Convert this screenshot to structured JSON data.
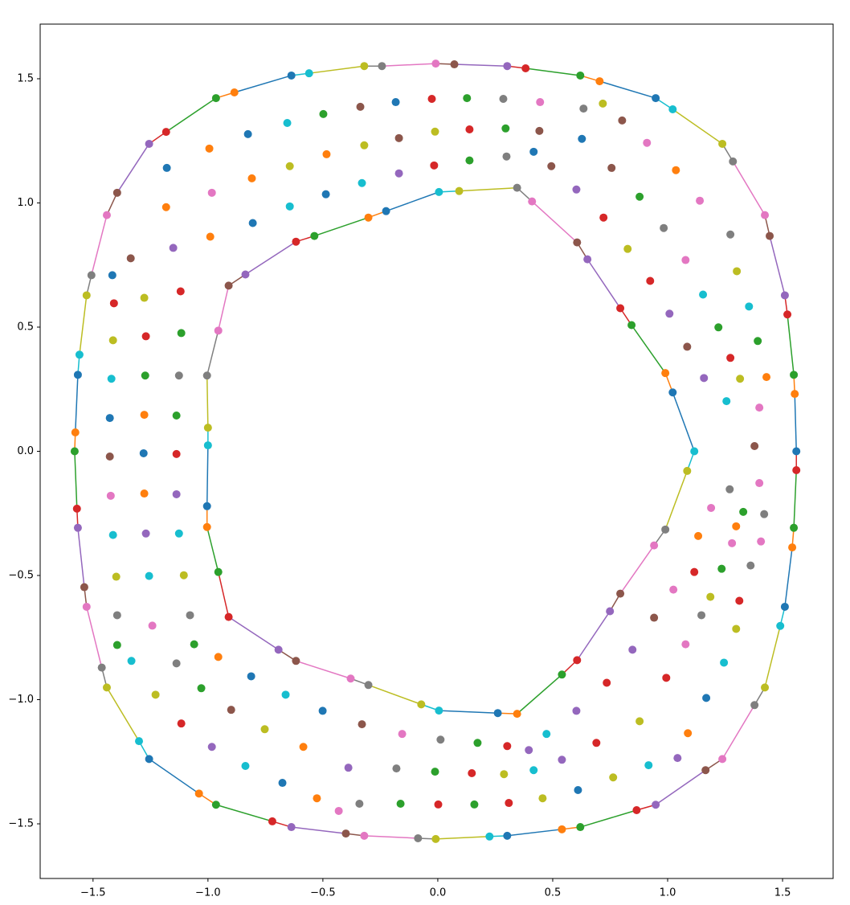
{
  "chart_data": {
    "type": "scatter",
    "xlim": [
      -1.73,
      1.72
    ],
    "ylim": [
      -1.72,
      1.72
    ],
    "xticks": [
      {
        "value": -1.5,
        "label": "−1.5"
      },
      {
        "value": -1,
        "label": "−1.0"
      },
      {
        "value": -0.5,
        "label": "−0.5"
      },
      {
        "value": 0,
        "label": "0.0"
      },
      {
        "value": 0.5,
        "label": "0.5"
      },
      {
        "value": 1,
        "label": "1.0"
      },
      {
        "value": 1.5,
        "label": "1.5"
      }
    ],
    "yticks": [
      {
        "value": -1.5,
        "label": "−1.5"
      },
      {
        "value": -1,
        "label": "−1.0"
      },
      {
        "value": -0.5,
        "label": "−0.5"
      },
      {
        "value": 0,
        "label": "0.0"
      },
      {
        "value": 0.5,
        "label": "0.5"
      },
      {
        "value": 1,
        "label": "1.0"
      },
      {
        "value": 1.5,
        "label": "1.5"
      }
    ],
    "loops": [
      {
        "x": [
          1.56,
          1.553,
          1.549,
          1.521,
          1.51,
          1.444,
          1.423,
          1.284,
          1.238,
          1.022,
          0.948,
          0.704,
          0.62,
          0.382,
          0.302,
          0.072,
          -0.009,
          -0.243,
          -0.32,
          -0.56,
          -0.637,
          -0.885,
          -0.965,
          -1.182,
          -1.256,
          -1.395,
          -1.44,
          -1.507,
          -1.528,
          -1.559,
          -1.566,
          -1.577,
          -1.58,
          -1.57,
          -1.566,
          -1.538,
          -1.528,
          -1.462,
          -1.44,
          -1.3,
          -1.256,
          -1.039,
          -0.965,
          -0.72,
          -0.637,
          -0.4,
          -0.32,
          -0.086,
          -0.009,
          0.225,
          0.302,
          0.54,
          0.62,
          0.865,
          0.948,
          1.165,
          1.238,
          1.378,
          1.423,
          1.49,
          1.51,
          1.542,
          1.549,
          1.56
        ],
        "y": [
          0,
          0.231,
          0.308,
          0.551,
          0.628,
          0.867,
          0.951,
          1.167,
          1.238,
          1.377,
          1.422,
          1.49,
          1.513,
          1.542,
          1.551,
          1.558,
          1.561,
          1.551,
          1.551,
          1.522,
          1.513,
          1.445,
          1.422,
          1.286,
          1.238,
          1.041,
          0.951,
          0.709,
          0.628,
          0.389,
          0.308,
          0.076,
          0,
          -0.231,
          -0.308,
          -0.547,
          -0.626,
          -0.871,
          -0.951,
          -1.167,
          -1.239,
          -1.378,
          -1.423,
          -1.49,
          -1.513,
          -1.539,
          -1.548,
          -1.558,
          -1.561,
          -1.551,
          -1.548,
          -1.522,
          -1.513,
          -1.445,
          -1.423,
          -1.284,
          -1.239,
          -1.022,
          -0.951,
          -0.703,
          -0.626,
          -0.387,
          -0.308,
          -0.076
        ],
        "colors": [
          "#1f77b4",
          "#ff7f0e",
          "#2ca02c",
          "#d62728",
          "#9467bd",
          "#8c564b",
          "#e377c2",
          "#7f7f7f",
          "#bcbd22",
          "#17becf",
          "#1f77b4",
          "#ff7f0e",
          "#2ca02c",
          "#d62728",
          "#9467bd",
          "#8c564b",
          "#e377c2",
          "#7f7f7f",
          "#bcbd22",
          "#17becf",
          "#1f77b4",
          "#ff7f0e",
          "#2ca02c",
          "#d62728",
          "#9467bd",
          "#8c564b",
          "#e377c2",
          "#7f7f7f",
          "#bcbd22",
          "#17becf",
          "#1f77b4",
          "#ff7f0e",
          "#2ca02c",
          "#d62728",
          "#9467bd",
          "#8c564b",
          "#e377c2",
          "#7f7f7f",
          "#bcbd22",
          "#17becf",
          "#1f77b4",
          "#ff7f0e",
          "#2ca02c",
          "#d62728",
          "#9467bd",
          "#8c564b",
          "#e377c2",
          "#7f7f7f",
          "#bcbd22",
          "#17becf",
          "#1f77b4",
          "#ff7f0e",
          "#2ca02c",
          "#d62728",
          "#9467bd",
          "#8c564b",
          "#e377c2",
          "#7f7f7f",
          "#bcbd22",
          "#17becf",
          "#1f77b4",
          "#ff7f0e",
          "#2ca02c",
          "#d62728"
        ]
      },
      {
        "x": [
          1.116,
          1.085,
          0.99,
          0.941,
          0.794,
          0.749,
          0.606,
          0.54,
          0.345,
          0.261,
          0.005,
          -0.072,
          -0.302,
          -0.379,
          -0.617,
          -0.693,
          -0.91,
          -0.955,
          -1.004,
          -1.004,
          -1.0,
          -1.0,
          -1.004,
          -0.955,
          -0.91,
          -0.837,
          -0.617,
          -0.537,
          -0.302,
          -0.225,
          0.005,
          0.093,
          0.345,
          0.41,
          0.606,
          0.651,
          0.794,
          0.843,
          0.99,
          1.022
        ],
        "y": [
          0,
          -0.079,
          -0.315,
          -0.379,
          -0.573,
          -0.644,
          -0.841,
          -0.899,
          -1.057,
          -1.054,
          -1.044,
          -1.019,
          -0.941,
          -0.915,
          -0.844,
          -0.799,
          -0.667,
          -0.486,
          -0.305,
          -0.221,
          0.024,
          0.095,
          0.305,
          0.486,
          0.667,
          0.712,
          0.844,
          0.867,
          0.941,
          0.967,
          1.044,
          1.048,
          1.061,
          1.006,
          0.841,
          0.773,
          0.576,
          0.508,
          0.315,
          0.237
        ],
        "colors": [
          "#17becf",
          "#bcbd22",
          "#7f7f7f",
          "#e377c2",
          "#8c564b",
          "#9467bd",
          "#d62728",
          "#2ca02c",
          "#ff7f0e",
          "#1f77b4",
          "#17becf",
          "#bcbd22",
          "#7f7f7f",
          "#e377c2",
          "#8c564b",
          "#9467bd",
          "#d62728",
          "#2ca02c",
          "#ff7f0e",
          "#1f77b4",
          "#17becf",
          "#bcbd22",
          "#7f7f7f",
          "#e377c2",
          "#8c564b",
          "#9467bd",
          "#d62728",
          "#2ca02c",
          "#ff7f0e",
          "#1f77b4",
          "#17becf",
          "#bcbd22",
          "#7f7f7f",
          "#e377c2",
          "#8c564b",
          "#9467bd",
          "#d62728",
          "#2ca02c",
          "#ff7f0e",
          "#1f77b4"
        ]
      }
    ],
    "points": {
      "x": [
        -0.337,
        -0.183,
        -0.026,
        0.127,
        0.285,
        0.445,
        0.634,
        0.718,
        0.802,
        0.91,
        1.036,
        1.14,
        1.273,
        1.301,
        1.354,
        1.392,
        1.43,
        1.399,
        1.315,
        1.273,
        1.221,
        1.154,
        1.078,
        0.983,
        0.878,
        0.756,
        0.627,
        0.442,
        0.295,
        0.138,
        -0.012,
        -0.169,
        -0.32,
        -0.484,
        -0.644,
        -0.809,
        -0.983,
        -0.99,
        -0.805,
        -0.644,
        -0.487,
        -0.33,
        -0.169,
        -0.016,
        0.138,
        0.299,
        0.417,
        0.494,
        0.603,
        0.721,
        0.826,
        0.924,
        1.008,
        1.085,
        1.158,
        1.256,
        1.378,
        1.27,
        1.399,
        1.42,
        1.329,
        1.189,
        1.298,
        1.28,
        1.406,
        1.361,
        1.235,
        1.133,
        1.116,
        1.186,
        1.312,
        1.298,
        1.147,
        1.025,
        0.941,
        1.078,
        1.245,
        1.168,
        1.088,
        1.043,
        0.917,
        0.994,
        0.847,
        0.878,
        0.735,
        0.69,
        0.763,
        0.61,
        0.456,
        0.309,
        0.159,
        0.002,
        -0.162,
        -0.341,
        -0.431,
        -0.526,
        -0.676,
        -0.837,
        -0.983,
        -1.116,
        -1.228,
        -1.333,
        -1.395,
        -1.395,
        -1.399,
        -1.413,
        -1.423,
        -1.427,
        -1.427,
        -1.42,
        -1.413,
        -1.409,
        -1.416,
        -1.336,
        -1.151,
        -1.182,
        -1.179,
        -0.994,
        -0.826,
        -0.655,
        -0.498,
        -1.277,
        -1.119,
        -1.27,
        -1.116,
        -1.273,
        -1.126,
        -1.277,
        -1.137,
        -1.28,
        -1.137,
        -1.277,
        -1.137,
        -1.27,
        -1.126,
        -1.256,
        -1.105,
        -1.078,
        -1.242,
        -1.06,
        -1.137,
        -0.955,
        -1.029,
        -0.899,
        -0.812,
        -0.662,
        -0.753,
        -0.585,
        -0.501,
        -0.33,
        -0.389,
        -0.18,
        -0.155,
        0.012,
        -0.012,
        0.148,
        0.173,
        0.302,
        0.288,
        0.396,
        0.417,
        0.473,
        0.54,
        0.603
      ],
      "y": [
        1.387,
        1.406,
        1.419,
        1.422,
        1.419,
        1.406,
        1.38,
        1.4,
        1.332,
        1.242,
        1.132,
        1.009,
        0.873,
        0.725,
        0.583,
        0.444,
        0.299,
        0.176,
        0.292,
        0.376,
        0.499,
        0.631,
        0.77,
        0.899,
        1.025,
        1.141,
        1.258,
        1.29,
        1.3,
        1.296,
        1.287,
        1.261,
        1.232,
        1.196,
        1.148,
        1.099,
        1.041,
        0.864,
        0.919,
        0.986,
        1.035,
        1.08,
        1.119,
        1.151,
        1.171,
        1.187,
        1.206,
        1.148,
        1.054,
        0.941,
        0.815,
        0.686,
        0.554,
        0.421,
        0.295,
        0.202,
        0.021,
        -0.153,
        -0.128,
        -0.253,
        -0.244,
        -0.228,
        -0.302,
        -0.37,
        -0.363,
        -0.46,
        -0.473,
        -0.341,
        -0.486,
        -0.586,
        -0.602,
        -0.715,
        -0.66,
        -0.557,
        -0.67,
        -0.777,
        -0.851,
        -0.993,
        -1.135,
        -1.235,
        -1.264,
        -0.912,
        -0.799,
        -1.087,
        -0.932,
        -1.174,
        -1.313,
        -1.364,
        -1.397,
        -1.416,
        -1.422,
        -1.422,
        -1.419,
        -1.419,
        -1.448,
        -1.397,
        -1.335,
        -1.267,
        -1.19,
        -1.096,
        -0.98,
        -0.844,
        -0.78,
        -0.66,
        -0.505,
        -0.337,
        -0.179,
        -0.021,
        0.134,
        0.292,
        0.447,
        0.596,
        0.709,
        0.777,
        0.819,
        0.983,
        1.141,
        1.219,
        1.277,
        1.322,
        1.358,
        0.618,
        0.644,
        0.463,
        0.476,
        0.305,
        0.305,
        0.147,
        0.144,
        -0.008,
        -0.011,
        -0.17,
        -0.173,
        -0.331,
        -0.331,
        -0.502,
        -0.499,
        -0.66,
        -0.702,
        -0.777,
        -0.854,
        -0.828,
        -0.954,
        -1.041,
        -0.906,
        -0.98,
        -1.119,
        -1.19,
        -1.045,
        -1.099,
        -1.274,
        -1.277,
        -1.138,
        -1.161,
        -1.29,
        -1.296,
        -1.174,
        -1.187,
        -1.3,
        -1.203,
        -1.284,
        -1.138,
        -1.242,
        -1.045
      ],
      "colors": [
        "#8c564b",
        "#1f77b4",
        "#d62728",
        "#2ca02c",
        "#7f7f7f",
        "#e377c2",
        "#7f7f7f",
        "#bcbd22",
        "#8c564b",
        "#e377c2",
        "#ff7f0e",
        "#e377c2",
        "#7f7f7f",
        "#bcbd22",
        "#17becf",
        "#2ca02c",
        "#ff7f0e",
        "#e377c2",
        "#bcbd22",
        "#d62728",
        "#2ca02c",
        "#17becf",
        "#e377c2",
        "#7f7f7f",
        "#2ca02c",
        "#8c564b",
        "#1f77b4",
        "#8c564b",
        "#2ca02c",
        "#d62728",
        "#bcbd22",
        "#8c564b",
        "#bcbd22",
        "#ff7f0e",
        "#bcbd22",
        "#ff7f0e",
        "#e377c2",
        "#ff7f0e",
        "#1f77b4",
        "#17becf",
        "#1f77b4",
        "#17becf",
        "#9467bd",
        "#d62728",
        "#2ca02c",
        "#7f7f7f",
        "#1f77b4",
        "#8c564b",
        "#9467bd",
        "#d62728",
        "#bcbd22",
        "#d62728",
        "#9467bd",
        "#8c564b",
        "#9467bd",
        "#17becf",
        "#8c564b",
        "#7f7f7f",
        "#e377c2",
        "#7f7f7f",
        "#2ca02c",
        "#e377c2",
        "#ff7f0e",
        "#e377c2",
        "#e377c2",
        "#7f7f7f",
        "#2ca02c",
        "#ff7f0e",
        "#d62728",
        "#bcbd22",
        "#d62728",
        "#bcbd22",
        "#7f7f7f",
        "#e377c2",
        "#8c564b",
        "#e377c2",
        "#17becf",
        "#1f77b4",
        "#ff7f0e",
        "#9467bd",
        "#17becf",
        "#d62728",
        "#9467bd",
        "#bcbd22",
        "#d62728",
        "#d62728",
        "#bcbd22",
        "#1f77b4",
        "#bcbd22",
        "#d62728",
        "#2ca02c",
        "#d62728",
        "#2ca02c",
        "#7f7f7f",
        "#e377c2",
        "#ff7f0e",
        "#1f77b4",
        "#17becf",
        "#9467bd",
        "#d62728",
        "#bcbd22",
        "#17becf",
        "#2ca02c",
        "#7f7f7f",
        "#bcbd22",
        "#17becf",
        "#e377c2",
        "#8c564b",
        "#1f77b4",
        "#17becf",
        "#bcbd22",
        "#d62728",
        "#1f77b4",
        "#8c564b",
        "#9467bd",
        "#ff7f0e",
        "#1f77b4",
        "#ff7f0e",
        "#1f77b4",
        "#17becf",
        "#2ca02c",
        "#bcbd22",
        "#d62728",
        "#d62728",
        "#2ca02c",
        "#2ca02c",
        "#7f7f7f",
        "#ff7f0e",
        "#2ca02c",
        "#1f77b4",
        "#d62728",
        "#ff7f0e",
        "#9467bd",
        "#9467bd",
        "#17becf",
        "#17becf",
        "#bcbd22",
        "#7f7f7f",
        "#e377c2",
        "#2ca02c",
        "#7f7f7f",
        "#ff7f0e",
        "#2ca02c",
        "#8c564b",
        "#1f77b4",
        "#17becf",
        "#bcbd22",
        "#ff7f0e",
        "#1f77b4",
        "#8c564b",
        "#9467bd",
        "#7f7f7f",
        "#e377c2",
        "#7f7f7f",
        "#2ca02c",
        "#d62728",
        "#2ca02c",
        "#d62728",
        "#bcbd22",
        "#9467bd",
        "#17becf",
        "#17becf",
        "#9467bd",
        "#9467bd"
      ]
    }
  }
}
